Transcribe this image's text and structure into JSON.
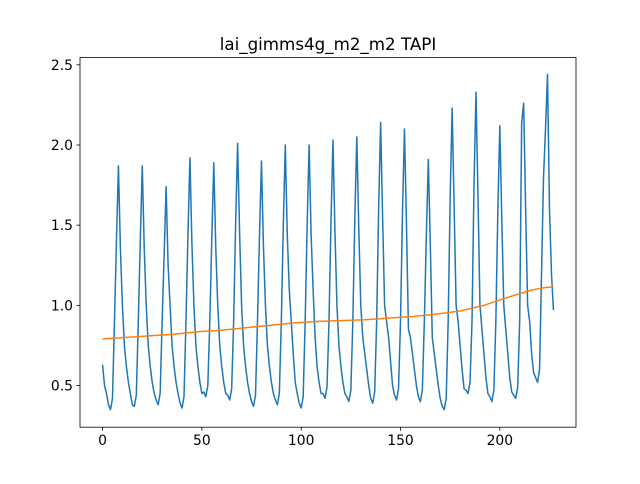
{
  "chart_data": {
    "type": "line",
    "title": "lai_gimms4g_m2_m2 TAPI",
    "xlim": [
      -11.35,
      238.35
    ],
    "ylim": [
      0.24,
      2.545
    ],
    "xticks": [
      0,
      50,
      100,
      150,
      200
    ],
    "yticks": [
      0.5,
      {
        "value": 1.0,
        "label": "1.0"
      },
      1.5,
      {
        "value": 2.0,
        "label": "2.0"
      },
      2.5
    ],
    "series": [
      {
        "color": "#1f77b4",
        "x": [
          0,
          1,
          2,
          3,
          4,
          5,
          6,
          7,
          8,
          9,
          10,
          11,
          12,
          13,
          14,
          15,
          16,
          17,
          18,
          19,
          20,
          21,
          22,
          23,
          24,
          25,
          26,
          27,
          28,
          29,
          30,
          31,
          32,
          33,
          34,
          35,
          36,
          37,
          38,
          39,
          40,
          41,
          42,
          43,
          44,
          45,
          46,
          47,
          48,
          49,
          50,
          51,
          52,
          53,
          54,
          55,
          56,
          57,
          58,
          59,
          60,
          61,
          62,
          63,
          64,
          65,
          66,
          67,
          68,
          69,
          70,
          71,
          72,
          73,
          74,
          75,
          76,
          77,
          78,
          79,
          80,
          81,
          82,
          83,
          84,
          85,
          86,
          87,
          88,
          89,
          90,
          91,
          92,
          93,
          94,
          95,
          96,
          97,
          98,
          99,
          100,
          101,
          102,
          103,
          104,
          105,
          106,
          107,
          108,
          109,
          110,
          111,
          112,
          113,
          114,
          115,
          116,
          117,
          118,
          119,
          120,
          121,
          122,
          123,
          124,
          125,
          126,
          127,
          128,
          129,
          130,
          131,
          132,
          133,
          134,
          135,
          136,
          137,
          138,
          139,
          140,
          141,
          142,
          143,
          144,
          145,
          146,
          147,
          148,
          149,
          150,
          151,
          152,
          153,
          154,
          155,
          156,
          157,
          158,
          159,
          160,
          161,
          162,
          163,
          164,
          165,
          166,
          167,
          168,
          169,
          170,
          171,
          172,
          173,
          174,
          175,
          176,
          177,
          178,
          179,
          180,
          181,
          182,
          183,
          184,
          185,
          186,
          187,
          188,
          189,
          190,
          191,
          192,
          193,
          194,
          195,
          196,
          197,
          198,
          199,
          200,
          201,
          202,
          203,
          204,
          205,
          206,
          207,
          208,
          209,
          210,
          211,
          212,
          213,
          214,
          215,
          216,
          217,
          218,
          219,
          220,
          221,
          222,
          223,
          224,
          225,
          226,
          227
        ],
        "values": [
          0.63,
          0.5,
          0.45,
          0.38,
          0.35,
          0.42,
          0.9,
          1.4,
          1.87,
          1.35,
          1.0,
          0.75,
          0.62,
          0.52,
          0.45,
          0.38,
          0.37,
          0.44,
          0.9,
          1.4,
          1.87,
          1.35,
          1.0,
          0.75,
          0.62,
          0.52,
          0.45,
          0.41,
          0.38,
          0.45,
          0.9,
          1.31,
          1.74,
          1.25,
          1.0,
          0.75,
          0.62,
          0.52,
          0.45,
          0.39,
          0.36,
          0.43,
          0.9,
          1.44,
          1.92,
          1.38,
          1.0,
          0.75,
          0.62,
          0.52,
          0.45,
          0.46,
          0.43,
          0.5,
          0.9,
          1.42,
          1.89,
          1.36,
          1.0,
          0.75,
          0.62,
          0.52,
          0.45,
          0.44,
          0.41,
          0.48,
          0.9,
          1.51,
          2.01,
          1.45,
          1.0,
          0.75,
          0.62,
          0.52,
          0.45,
          0.4,
          0.37,
          0.44,
          0.9,
          1.43,
          1.9,
          1.37,
          1.0,
          0.75,
          0.62,
          0.52,
          0.45,
          0.41,
          0.38,
          0.45,
          0.9,
          1.5,
          2.0,
          1.44,
          1.1,
          0.9,
          0.7,
          0.52,
          0.45,
          0.39,
          0.36,
          0.43,
          0.9,
          1.5,
          2.0,
          1.44,
          1.1,
          0.8,
          0.62,
          0.52,
          0.45,
          0.45,
          0.42,
          0.49,
          0.9,
          1.52,
          2.03,
          1.46,
          1.0,
          0.75,
          0.62,
          0.52,
          0.45,
          0.43,
          0.4,
          0.47,
          0.9,
          1.54,
          2.05,
          1.48,
          1.0,
          0.8,
          0.7,
          0.6,
          0.5,
          0.42,
          0.39,
          0.46,
          0.9,
          1.61,
          2.14,
          1.54,
          1.0,
          0.9,
          0.8,
          0.65,
          0.5,
          0.44,
          0.41,
          0.48,
          0.9,
          1.58,
          2.1,
          1.51,
          0.85,
          0.8,
          0.7,
          0.6,
          0.5,
          0.43,
          0.4,
          0.47,
          0.9,
          1.43,
          1.91,
          1.38,
          0.8,
          0.7,
          0.6,
          0.5,
          0.42,
          0.37,
          0.35,
          0.42,
          0.9,
          1.67,
          2.23,
          1.61,
          1.0,
          0.9,
          0.75,
          0.6,
          0.48,
          0.47,
          0.45,
          0.52,
          0.9,
          1.75,
          2.33,
          1.68,
          1.0,
          0.85,
          0.7,
          0.55,
          0.45,
          0.43,
          0.4,
          0.47,
          0.9,
          1.59,
          2.12,
          1.53,
          1.0,
          0.85,
          0.7,
          0.55,
          0.46,
          0.44,
          0.42,
          0.49,
          0.9,
          2.14,
          2.26,
          1.6,
          1.0,
          0.9,
          0.7,
          0.58,
          0.55,
          0.52,
          0.6,
          1.2,
          1.8,
          2.1,
          2.44,
          1.6,
          1.2,
          0.97
        ]
      },
      {
        "color": "#ff7f0e",
        "x": [
          0,
          12,
          24,
          36,
          48,
          60,
          72,
          84,
          96,
          108,
          120,
          132,
          144,
          156,
          168,
          180,
          192,
          204,
          216,
          222,
          227
        ],
        "values": [
          0.79,
          0.8,
          0.81,
          0.82,
          0.835,
          0.845,
          0.86,
          0.875,
          0.89,
          0.9,
          0.905,
          0.91,
          0.92,
          0.93,
          0.945,
          0.965,
          1.0,
          1.05,
          1.095,
          1.11,
          1.115
        ]
      }
    ]
  }
}
